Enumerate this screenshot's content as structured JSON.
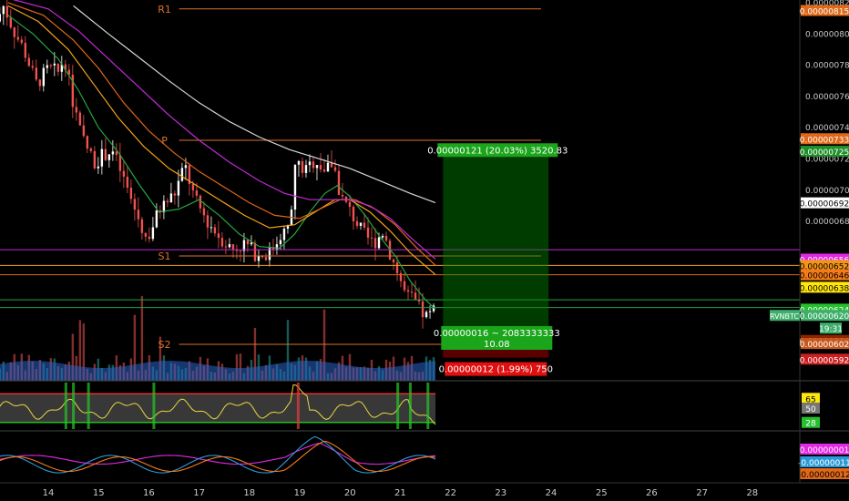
{
  "chart_data": {
    "type": "candlestick",
    "symbol": "RVNBTC",
    "countdown": "19:31",
    "x_ticks": [
      {
        "day": 14,
        "label": "14"
      },
      {
        "day": 15,
        "label": "15"
      },
      {
        "day": 16,
        "label": "16"
      },
      {
        "day": 17,
        "label": "17"
      },
      {
        "day": 18,
        "label": "18"
      },
      {
        "day": 19,
        "label": "19"
      },
      {
        "day": 20,
        "label": "20"
      },
      {
        "day": 21,
        "label": "21"
      },
      {
        "day": 22,
        "label": "22"
      },
      {
        "day": 23,
        "label": "23"
      },
      {
        "day": 24,
        "label": "24"
      },
      {
        "day": 25,
        "label": "25"
      },
      {
        "day": 26,
        "label": "26"
      },
      {
        "day": 27,
        "label": "27"
      },
      {
        "day": 28,
        "label": "28"
      }
    ],
    "x_range": [
      13.0,
      29.0
    ],
    "y_range": [
      5.782e-06,
      8.217e-06
    ],
    "y_ticks": [
      {
        "value": 8.2e-06,
        "label": "0.00000820"
      },
      {
        "value": 8e-06,
        "label": "0.00000800"
      },
      {
        "value": 7.8e-06,
        "label": "0.00000780"
      },
      {
        "value": 7.6e-06,
        "label": "0.00000760"
      },
      {
        "value": 7.4e-06,
        "label": "0.00000740"
      },
      {
        "value": 7.2e-06,
        "label": "0.00000720"
      },
      {
        "value": 7e-06,
        "label": "0.00000700"
      },
      {
        "value": 6.8e-06,
        "label": "0.00000680"
      }
    ],
    "price_keyframes": [
      [
        13.0,
        8.08e-06
      ],
      [
        13.15,
        8.18e-06
      ],
      [
        13.35,
        8.02e-06
      ],
      [
        13.55,
        7.9e-06
      ],
      [
        13.8,
        7.68e-06
      ],
      [
        14.05,
        7.78e-06
      ],
      [
        14.25,
        7.75e-06
      ],
      [
        14.35,
        7.87e-06
      ],
      [
        14.5,
        7.6e-06
      ],
      [
        14.7,
        7.34e-06
      ],
      [
        14.95,
        7.18e-06
      ],
      [
        15.1,
        7.22e-06
      ],
      [
        15.3,
        7.26e-06
      ],
      [
        15.5,
        7.1e-06
      ],
      [
        15.75,
        6.88e-06
      ],
      [
        16.0,
        6.68e-06
      ],
      [
        16.25,
        6.88e-06
      ],
      [
        16.55,
        6.98e-06
      ],
      [
        16.75,
        7.16e-06
      ],
      [
        16.95,
        6.94e-06
      ],
      [
        17.2,
        6.8e-06
      ],
      [
        17.45,
        6.7e-06
      ],
      [
        17.7,
        6.62e-06
      ],
      [
        17.95,
        6.66e-06
      ],
      [
        18.2,
        6.58e-06
      ],
      [
        18.45,
        6.6e-06
      ],
      [
        18.65,
        6.72e-06
      ],
      [
        18.85,
        6.76e-06
      ],
      [
        18.95,
        7.18e-06
      ],
      [
        19.15,
        7.12e-06
      ],
      [
        19.35,
        7.2e-06
      ],
      [
        19.55,
        7.12e-06
      ],
      [
        19.7,
        7.18e-06
      ],
      [
        19.85,
        6.96e-06
      ],
      [
        20.05,
        6.86e-06
      ],
      [
        20.3,
        6.72e-06
      ],
      [
        20.5,
        6.66e-06
      ],
      [
        20.7,
        6.74e-06
      ],
      [
        20.85,
        6.58e-06
      ],
      [
        21.0,
        6.46e-06
      ],
      [
        21.15,
        6.32e-06
      ],
      [
        21.3,
        6.3e-06
      ],
      [
        21.45,
        6.22e-06
      ],
      [
        21.6,
        6.18e-06
      ],
      [
        21.7,
        6.24e-06
      ]
    ],
    "moving_averages": [
      {
        "color": "#26a641",
        "points": [
          [
            13.2,
            8.12e-06
          ],
          [
            13.7,
            8e-06
          ],
          [
            14.2,
            7.84e-06
          ],
          [
            14.6,
            7.64e-06
          ],
          [
            15.0,
            7.4e-06
          ],
          [
            15.4,
            7.24e-06
          ],
          [
            15.8,
            7.04e-06
          ],
          [
            16.2,
            6.86e-06
          ],
          [
            16.6,
            6.88e-06
          ],
          [
            17.0,
            6.94e-06
          ],
          [
            17.4,
            6.84e-06
          ],
          [
            17.8,
            6.72e-06
          ],
          [
            18.2,
            6.64e-06
          ],
          [
            18.6,
            6.63e-06
          ],
          [
            18.9,
            6.72e-06
          ],
          [
            19.2,
            6.86e-06
          ],
          [
            19.5,
            6.98e-06
          ],
          [
            19.75,
            7.03e-06
          ],
          [
            20.0,
            6.96e-06
          ],
          [
            20.3,
            6.84e-06
          ],
          [
            20.6,
            6.7e-06
          ],
          [
            20.9,
            6.58e-06
          ],
          [
            21.2,
            6.42e-06
          ],
          [
            21.5,
            6.3e-06
          ],
          [
            21.7,
            6.24e-06
          ]
        ]
      },
      {
        "color": "#f7a21b",
        "points": [
          [
            13.2,
            8.18e-06
          ],
          [
            13.8,
            8.08e-06
          ],
          [
            14.4,
            7.9e-06
          ],
          [
            14.9,
            7.68e-06
          ],
          [
            15.4,
            7.46e-06
          ],
          [
            15.9,
            7.28e-06
          ],
          [
            16.4,
            7.14e-06
          ],
          [
            16.9,
            7.04e-06
          ],
          [
            17.4,
            6.94e-06
          ],
          [
            17.9,
            6.84e-06
          ],
          [
            18.4,
            6.76e-06
          ],
          [
            18.9,
            6.78e-06
          ],
          [
            19.3,
            6.86e-06
          ],
          [
            19.7,
            6.94e-06
          ],
          [
            20.0,
            6.94e-06
          ],
          [
            20.4,
            6.86e-06
          ],
          [
            20.8,
            6.74e-06
          ],
          [
            21.2,
            6.6e-06
          ],
          [
            21.7,
            6.46e-06
          ]
        ]
      },
      {
        "color": "#e06818",
        "points": [
          [
            13.2,
            8.2e-06
          ],
          [
            13.9,
            8.12e-06
          ],
          [
            14.5,
            7.96e-06
          ],
          [
            15.0,
            7.78e-06
          ],
          [
            15.5,
            7.56e-06
          ],
          [
            16.0,
            7.38e-06
          ],
          [
            16.5,
            7.24e-06
          ],
          [
            17.0,
            7.12e-06
          ],
          [
            17.5,
            7.02e-06
          ],
          [
            18.0,
            6.92e-06
          ],
          [
            18.5,
            6.84e-06
          ],
          [
            19.0,
            6.82e-06
          ],
          [
            19.4,
            6.88e-06
          ],
          [
            19.8,
            6.94e-06
          ],
          [
            20.1,
            6.94e-06
          ],
          [
            20.5,
            6.88e-06
          ],
          [
            20.9,
            6.78e-06
          ],
          [
            21.3,
            6.64e-06
          ],
          [
            21.7,
            6.52e-06
          ]
        ]
      },
      {
        "color": "#c22bd4",
        "points": [
          [
            13.3,
            8.22e-06
          ],
          [
            14.0,
            8.16e-06
          ],
          [
            14.6,
            8.02e-06
          ],
          [
            15.2,
            7.84e-06
          ],
          [
            15.8,
            7.66e-06
          ],
          [
            16.4,
            7.48e-06
          ],
          [
            17.0,
            7.32e-06
          ],
          [
            17.6,
            7.18e-06
          ],
          [
            18.2,
            7.06e-06
          ],
          [
            18.7,
            6.98e-06
          ],
          [
            19.2,
            6.94e-06
          ],
          [
            19.6,
            6.94e-06
          ],
          [
            20.0,
            6.94e-06
          ],
          [
            20.4,
            6.9e-06
          ],
          [
            20.8,
            6.82e-06
          ],
          [
            21.2,
            6.7e-06
          ],
          [
            21.7,
            6.56e-06
          ]
        ]
      },
      {
        "color": "#d8d8d8",
        "points": [
          [
            14.5,
            8.18e-06
          ],
          [
            15.2,
            8e-06
          ],
          [
            15.8,
            7.85e-06
          ],
          [
            16.4,
            7.7e-06
          ],
          [
            17.0,
            7.56e-06
          ],
          [
            17.6,
            7.44e-06
          ],
          [
            18.2,
            7.34e-06
          ],
          [
            18.8,
            7.26e-06
          ],
          [
            19.4,
            7.2e-06
          ],
          [
            20.0,
            7.14e-06
          ],
          [
            20.6,
            7.06e-06
          ],
          [
            21.2,
            6.98e-06
          ],
          [
            21.7,
            6.92e-06
          ]
        ]
      }
    ],
    "pivot_levels": [
      {
        "label": "R1",
        "value": 8.16e-06,
        "color": "#d9732a"
      },
      {
        "label": "P",
        "value": 7.32e-06,
        "color": "#d9732a"
      },
      {
        "label": "S1",
        "value": 6.58e-06,
        "color": "#d9732a"
      },
      {
        "label": "S2",
        "value": 6.015e-06,
        "color": "#d9732a"
      }
    ],
    "pivot_x_range": [
      16.6,
      23.8
    ],
    "horizontal_lines": [
      {
        "value": 6.62e-06,
        "color": "#c22bd4"
      },
      {
        "value": 6.52e-06,
        "color": "#f7a21b"
      },
      {
        "value": 6.46e-06,
        "color": "#e06818"
      },
      {
        "value": 6.3e-06,
        "color": "#26a641"
      },
      {
        "value": 6.25e-06,
        "color": "#2b9a4a"
      }
    ],
    "position": {
      "x_start": 21.85,
      "x_end": 23.95,
      "entry": 6.05e-06,
      "target": 7.26e-06,
      "stop": 5.93e-06,
      "target_label": "0.00000121 (20.03%) 3520.83",
      "center_label_line1": "0.00000016 ~ 2083333333",
      "center_label_line2": "10.08",
      "stop_label": "0.00000012 (1.99%) 750"
    },
    "price_tags": [
      {
        "label": "0.00000815",
        "value": 8.15e-06,
        "bg": "#e06818",
        "fg": "#ffffff"
      },
      {
        "label": "0.00000733",
        "value": 7.33e-06,
        "bg": "#e06818",
        "fg": "#ffffff"
      },
      {
        "label": "0.00000725",
        "value": 7.25e-06,
        "bg": "#1f8f2a",
        "fg": "#ffffff"
      },
      {
        "label": "0.00000692",
        "value": 6.92e-06,
        "bg": "#ffffff",
        "fg": "#000000"
      },
      {
        "label": "0.00000656",
        "value": 6.56e-06,
        "bg": "#e528e5",
        "fg": "#ffffff"
      },
      {
        "label": "0.00000652",
        "value": 6.52e-06,
        "bg": "#f29418",
        "fg": "#000000"
      },
      {
        "label": "0.00000646",
        "value": 6.46e-06,
        "bg": "#f57a19",
        "fg": "#000000"
      },
      {
        "label": "0.00000638",
        "value": 6.38e-06,
        "bg": "#ffe60b",
        "fg": "#000000"
      },
      {
        "label": "0.00000624",
        "value": 6.24e-06,
        "bg": "#26c12f",
        "fg": "#ffffff"
      },
      {
        "label": "0.00000620",
        "value": 6.2e-06,
        "bg": "#3fae6a",
        "fg": "#ffffff"
      },
      {
        "label": "0.00000604",
        "value": 6.04e-06,
        "bg": "#8b2600",
        "fg": "#ffffff"
      },
      {
        "label": "0.00000602",
        "value": 6.02e-06,
        "bg": "#c8581c",
        "fg": "#ffffff"
      },
      {
        "label": "0.00000592",
        "value": 5.92e-06,
        "bg": "#cc1f1f",
        "fg": "#ffffff"
      }
    ],
    "rsi": {
      "upper_level": 72,
      "mid_level": 50,
      "lower_level": 28,
      "range": [
        15,
        92
      ],
      "tags": [
        {
          "label": "65",
          "value": 65,
          "bg": "#ffe60b",
          "fg": "#000000"
        },
        {
          "label": "50",
          "value": 50,
          "bg": "#777777",
          "fg": "#ffffff"
        },
        {
          "label": "28",
          "value": 28,
          "bg": "#26c12f",
          "fg": "#ffffff"
        }
      ]
    },
    "macd": {
      "tags": [
        {
          "label": "0.00000001",
          "bg": "#e528e5",
          "fg": "#ffffff"
        },
        {
          "label": "-0.00000011",
          "bg": "#2b9bd8",
          "fg": "#ffffff"
        },
        {
          "label": "-0.00000012",
          "bg": "#e06818",
          "fg": "#000000"
        }
      ]
    }
  }
}
